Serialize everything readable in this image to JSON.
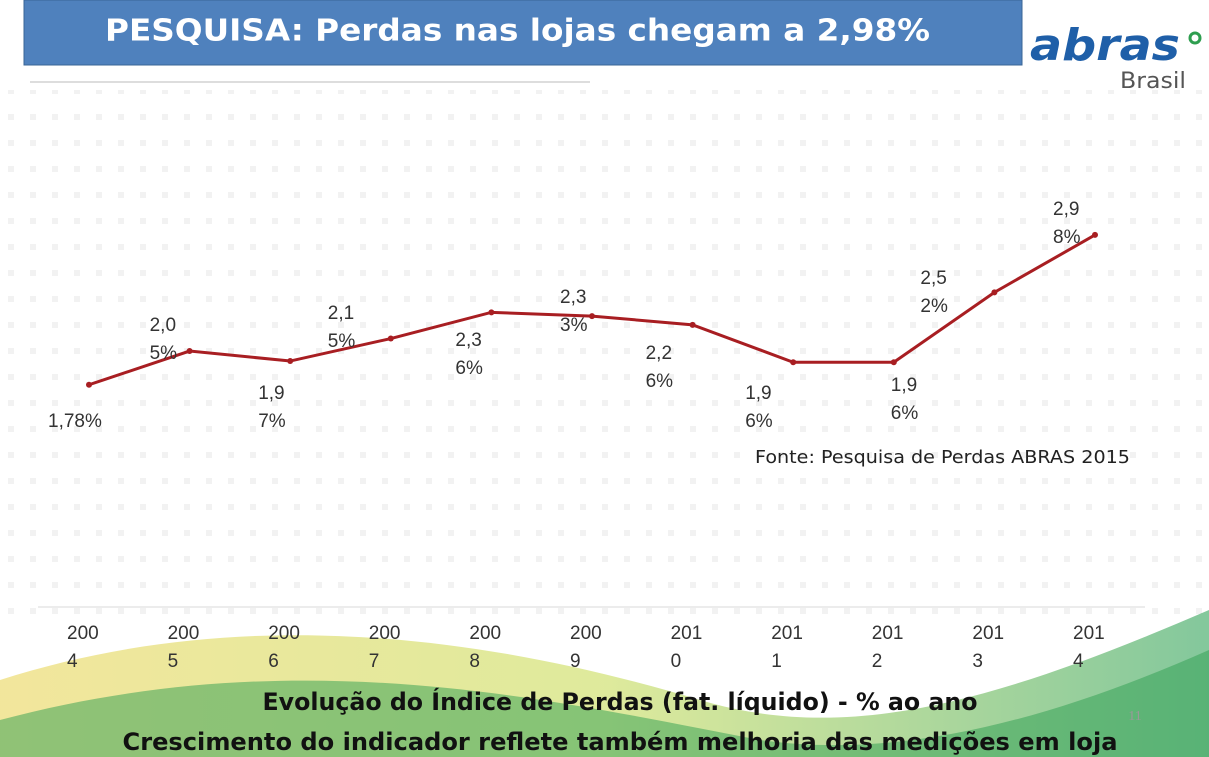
{
  "header": {
    "title": "PESQUISA: Perdas nas lojas chegam a 2,98%"
  },
  "logo": {
    "name": "abras",
    "sub": "Brasil"
  },
  "chart_data": {
    "type": "line",
    "categories": [
      "2004",
      "2005",
      "2006",
      "2007",
      "2008",
      "2009",
      "2010",
      "2011",
      "2012",
      "2013",
      "2014"
    ],
    "values": [
      1.78,
      2.05,
      1.97,
      2.15,
      2.36,
      2.33,
      2.26,
      1.96,
      1.96,
      2.52,
      2.98
    ],
    "value_labels": [
      "1,78%",
      "2,05%",
      "1,97%",
      "2,15%",
      "2,36%",
      "2,33%",
      "2,26%",
      "1,96%",
      "1,96%",
      "2,52%",
      "2,98%"
    ],
    "color": "#a81e22",
    "ylim": [
      0,
      3.5
    ],
    "source": "Fonte: Pesquisa de Perdas ABRAS 2015"
  },
  "footer": {
    "caption": "Evolução do Índice de Perdas (fat. líquido) - % ao ano",
    "subcaption": "Crescimento do indicador reflete também melhoria das medições em loja",
    "page": "11"
  }
}
